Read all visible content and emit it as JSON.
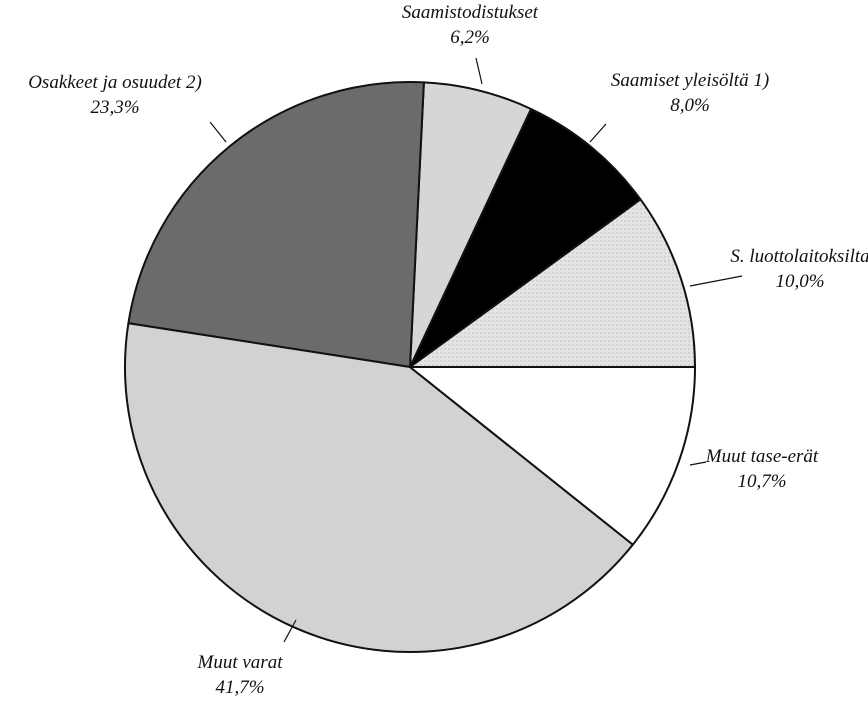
{
  "chart_data": {
    "type": "pie",
    "categories": [
      "S. luottolaitoksilta",
      "Saamiset yleisöltä 1)",
      "Saamistodistukset",
      "Osakkeet ja osuudet 2)",
      "Muut varat",
      "Muut tase-erät"
    ],
    "values": [
      10.0,
      8.0,
      6.2,
      23.3,
      41.7,
      10.7
    ],
    "value_labels": [
      "10,0%",
      "8,0%",
      "6,2%",
      "23,3%",
      "41,7%",
      "10,7%"
    ],
    "colors": [
      "#e4e4e4",
      "#000000",
      "#d6d6d6",
      "#6b6b6b",
      "#d2d2d2",
      "#ffffff"
    ]
  }
}
